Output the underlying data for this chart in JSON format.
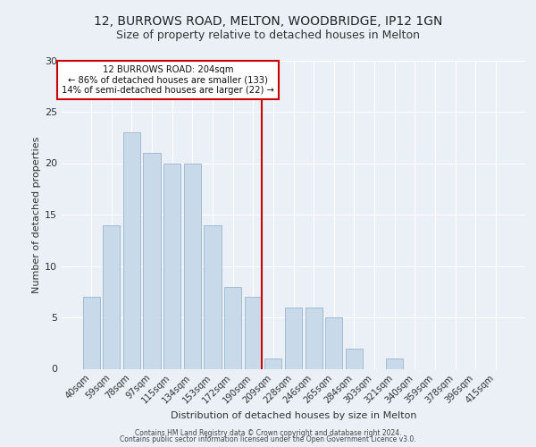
{
  "title1": "12, BURROWS ROAD, MELTON, WOODBRIDGE, IP12 1GN",
  "title2": "Size of property relative to detached houses in Melton",
  "xlabel": "Distribution of detached houses by size in Melton",
  "ylabel": "Number of detached properties",
  "categories": [
    "40sqm",
    "59sqm",
    "78sqm",
    "97sqm",
    "115sqm",
    "134sqm",
    "153sqm",
    "172sqm",
    "190sqm",
    "209sqm",
    "228sqm",
    "246sqm",
    "265sqm",
    "284sqm",
    "303sqm",
    "321sqm",
    "340sqm",
    "359sqm",
    "378sqm",
    "396sqm",
    "415sqm"
  ],
  "values": [
    7,
    14,
    23,
    21,
    20,
    20,
    14,
    8,
    7,
    1,
    6,
    6,
    5,
    2,
    0,
    1,
    0,
    0,
    0,
    0,
    0
  ],
  "bar_color": "#c8d9ea",
  "bar_edgecolor": "#9ab5cc",
  "vline_color": "#cc0000",
  "annotation_title": "12 BURROWS ROAD: 204sqm",
  "annotation_line1": "← 86% of detached houses are smaller (133)",
  "annotation_line2": "14% of semi-detached houses are larger (22) →",
  "annotation_box_color": "#ffffff",
  "annotation_box_edgecolor": "#cc0000",
  "ylim": [
    0,
    30
  ],
  "yticks": [
    0,
    5,
    10,
    15,
    20,
    25,
    30
  ],
  "footer1": "Contains HM Land Registry data © Crown copyright and database right 2024.",
  "footer2": "Contains public sector information licensed under the Open Government Licence v3.0.",
  "bg_color": "#eaf0f6",
  "grid_color": "#ffffff",
  "title1_fontsize": 10,
  "title2_fontsize": 9
}
